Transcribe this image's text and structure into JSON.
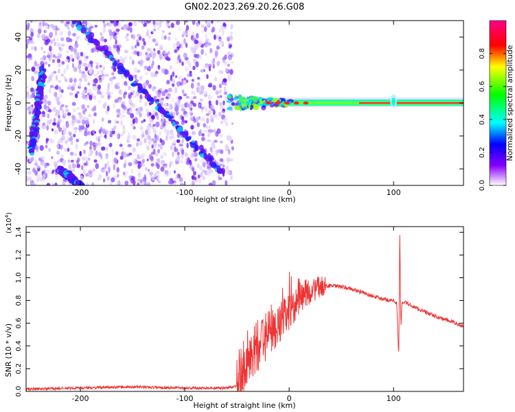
{
  "title": "GN02.2023.269.20.26.G08",
  "chart_data": [
    {
      "type": "heatmap",
      "xlabel": "Height of straight line (km)",
      "ylabel": "Frequency (Hz)",
      "xlim": [
        -252,
        167
      ],
      "ylim": [
        -50,
        50
      ],
      "xticks": [
        "-200",
        "-100",
        "0",
        "100"
      ],
      "yticks": [
        "-40",
        "-20",
        "0",
        "20",
        "40"
      ],
      "xtick_values": [
        -200,
        -100,
        0,
        100
      ],
      "ytick_values": [
        -40,
        -20,
        0,
        20,
        40
      ],
      "colorbar": {
        "label": "Normalized spectral amplitude",
        "range": [
          0,
          1
        ],
        "ticks": [
          "0.0",
          "0.2",
          "0.4",
          "0.6",
          "0.8"
        ],
        "tick_values": [
          0,
          0.2,
          0.4,
          0.6,
          0.8
        ],
        "colormap": [
          "#ffffff",
          "#8800ff",
          "#0000ff",
          "#00ffff",
          "#00ff00",
          "#ffff00",
          "#ff0000",
          "#ff0088"
        ]
      },
      "features": {
        "noise_region_x": [
          -252,
          -58
        ],
        "diagonal_traces": [
          {
            "x": [
              -205,
              -65
            ],
            "y": [
              50,
              -42
            ]
          },
          {
            "x": [
              -236,
              -247
            ],
            "y": [
              20,
              -30
            ]
          },
          {
            "x": [
              -220,
              -200
            ],
            "y": [
              -40,
              -50
            ]
          }
        ],
        "carrier_line": {
          "x": [
            -58,
            167
          ],
          "y": 0
        }
      }
    },
    {
      "type": "line",
      "xlabel": "Height of straight line (km)",
      "ylabel": "SNR (10 * v/v)",
      "yscale_note": "(x10",
      "yscale_exp": "4",
      "xlim": [
        -252,
        167
      ],
      "ylim": [
        0,
        1.45
      ],
      "xticks": [
        "-200",
        "-100",
        "0",
        "100"
      ],
      "yticks": [
        "0.0",
        "0.2",
        "0.4",
        "0.6",
        "0.8",
        "1.0",
        "1.2",
        "1.4"
      ],
      "xtick_values": [
        -200,
        -100,
        0,
        100
      ],
      "ytick_values": [
        0,
        0.2,
        0.4,
        0.6,
        0.8,
        1.0,
        1.2,
        1.4
      ],
      "series": [
        {
          "color": "#ee3333",
          "x": [
            -252,
            -200,
            -150,
            -100,
            -60,
            -50,
            -45,
            -40,
            -35,
            -30,
            -25,
            -20,
            -15,
            -10,
            -5,
            0,
            5,
            10,
            15,
            20,
            25,
            30,
            35,
            40,
            50,
            60,
            70,
            80,
            90,
            100,
            103,
            105,
            106,
            107,
            108,
            110,
            120,
            130,
            140,
            150,
            160,
            167
          ],
          "y": [
            0.02,
            0.03,
            0.04,
            0.03,
            0.03,
            0.05,
            0.18,
            0.3,
            0.35,
            0.4,
            0.45,
            0.5,
            0.55,
            0.6,
            0.65,
            0.7,
            0.76,
            0.82,
            0.86,
            0.88,
            0.9,
            0.92,
            0.93,
            0.93,
            0.92,
            0.9,
            0.87,
            0.84,
            0.81,
            0.8,
            0.78,
            0.3,
            1.42,
            0.55,
            0.78,
            0.79,
            0.74,
            0.7,
            0.66,
            0.63,
            0.6,
            0.57
          ]
        }
      ]
    }
  ]
}
